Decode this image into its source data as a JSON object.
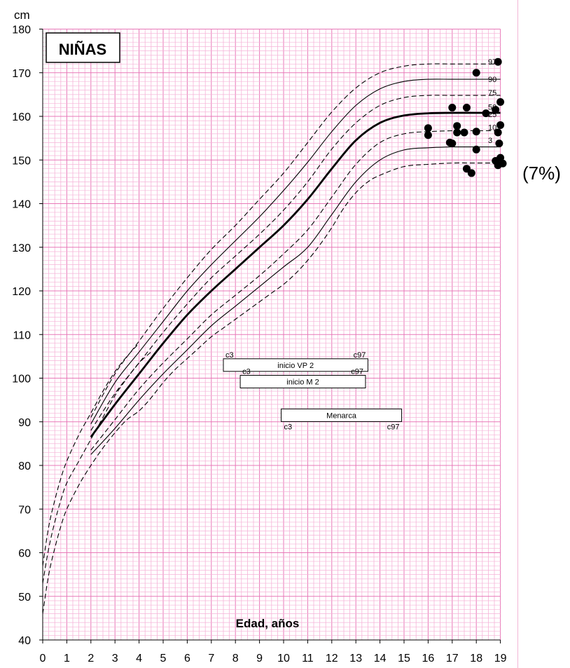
{
  "chart_data": {
    "type": "line",
    "title": "NIÑAS",
    "ylabel": "cm",
    "xlabel": "Edad, años",
    "xlim": [
      0,
      19
    ],
    "ylim": [
      40,
      180
    ],
    "xticks": [
      0,
      1,
      2,
      3,
      4,
      5,
      6,
      7,
      8,
      9,
      10,
      11,
      12,
      13,
      14,
      15,
      16,
      17,
      18,
      19
    ],
    "yticks": [
      40,
      50,
      60,
      70,
      80,
      90,
      100,
      110,
      120,
      130,
      140,
      150,
      160,
      170,
      180
    ],
    "grid": true,
    "side_note": "(7%)",
    "series": [
      {
        "name": "3",
        "style": "solid",
        "points": [
          [
            2,
            82.5
          ],
          [
            3,
            88.5
          ],
          [
            4,
            95
          ],
          [
            5,
            101
          ],
          [
            6,
            106.5
          ],
          [
            7,
            112
          ],
          [
            8,
            116.5
          ],
          [
            9,
            121
          ],
          [
            10,
            125.5
          ],
          [
            11,
            130
          ],
          [
            12,
            137.5
          ],
          [
            13,
            145
          ],
          [
            14,
            150
          ],
          [
            15,
            152.3
          ],
          [
            16,
            152.8
          ],
          [
            17,
            153
          ],
          [
            18,
            153
          ],
          [
            19,
            153
          ]
        ]
      },
      {
        "name": "10",
        "style": "dashed",
        "points": [
          [
            2,
            83.5
          ],
          [
            3,
            90.5
          ],
          [
            4,
            97.5
          ],
          [
            5,
            103.5
          ],
          [
            6,
            109
          ],
          [
            7,
            114.5
          ],
          [
            8,
            119
          ],
          [
            9,
            123.5
          ],
          [
            10,
            128.5
          ],
          [
            11,
            134
          ],
          [
            12,
            141.5
          ],
          [
            13,
            149
          ],
          [
            14,
            154
          ],
          [
            15,
            156
          ],
          [
            16,
            156.5
          ],
          [
            17,
            156.7
          ],
          [
            18,
            156.7
          ],
          [
            19,
            156.7
          ]
        ]
      },
      {
        "name": "50",
        "style": "bold",
        "points": [
          [
            2,
            86.5
          ],
          [
            3,
            94
          ],
          [
            4,
            101
          ],
          [
            5,
            108
          ],
          [
            6,
            114.5
          ],
          [
            7,
            120
          ],
          [
            8,
            125
          ],
          [
            9,
            130
          ],
          [
            10,
            135
          ],
          [
            11,
            141
          ],
          [
            12,
            148
          ],
          [
            13,
            154.5
          ],
          [
            14,
            158.5
          ],
          [
            15,
            160.2
          ],
          [
            16,
            160.7
          ],
          [
            17,
            160.8
          ],
          [
            18,
            160.8
          ],
          [
            19,
            160.8
          ]
        ]
      },
      {
        "name": "75",
        "style": "dashed",
        "points": [
          [
            2,
            88
          ],
          [
            3,
            96.5
          ],
          [
            4,
            103.5
          ],
          [
            5,
            110.5
          ],
          [
            6,
            117
          ],
          [
            7,
            123
          ],
          [
            8,
            128
          ],
          [
            9,
            133
          ],
          [
            10,
            138.5
          ],
          [
            11,
            145
          ],
          [
            12,
            152.5
          ],
          [
            13,
            158.5
          ],
          [
            14,
            162.5
          ],
          [
            15,
            164.3
          ],
          [
            16,
            164.8
          ],
          [
            17,
            164.8
          ],
          [
            18,
            164.8
          ],
          [
            19,
            164.8
          ]
        ]
      },
      {
        "name": "90",
        "style": "solid",
        "points": [
          [
            2,
            89.5
          ],
          [
            3,
            99
          ],
          [
            4,
            106
          ],
          [
            5,
            113
          ],
          [
            6,
            120
          ],
          [
            7,
            126
          ],
          [
            8,
            131.5
          ],
          [
            9,
            137
          ],
          [
            10,
            143
          ],
          [
            11,
            149.5
          ],
          [
            12,
            156.5
          ],
          [
            13,
            162.5
          ],
          [
            14,
            166.3
          ],
          [
            15,
            168
          ],
          [
            16,
            168.5
          ],
          [
            17,
            168.5
          ],
          [
            18,
            168.5
          ],
          [
            19,
            168.5
          ]
        ]
      },
      {
        "name": "97",
        "style": "dashed",
        "points": [
          [
            2,
            91
          ],
          [
            3,
            101
          ],
          [
            4,
            108.5
          ],
          [
            5,
            116
          ],
          [
            6,
            123
          ],
          [
            7,
            129.5
          ],
          [
            8,
            135
          ],
          [
            9,
            141
          ],
          [
            10,
            147
          ],
          [
            11,
            154
          ],
          [
            12,
            161
          ],
          [
            13,
            166.5
          ],
          [
            14,
            170
          ],
          [
            15,
            171.5
          ],
          [
            16,
            172
          ],
          [
            17,
            172
          ],
          [
            18,
            172
          ],
          [
            19,
            172
          ]
        ]
      },
      {
        "name": "",
        "style": "dashed",
        "points": [
          [
            0,
            46
          ],
          [
            0.25,
            55
          ],
          [
            0.5,
            61
          ],
          [
            0.75,
            66
          ],
          [
            1,
            70
          ],
          [
            1.5,
            75.5
          ],
          [
            2,
            80
          ],
          [
            2.5,
            84
          ],
          [
            3,
            87.5
          ],
          [
            3.5,
            90.5
          ],
          [
            4,
            92.5
          ],
          [
            4.5,
            95.5
          ],
          [
            5,
            99
          ],
          [
            5.5,
            102
          ],
          [
            6,
            104.5
          ],
          [
            6.5,
            107
          ],
          [
            7,
            109.5
          ],
          [
            7.5,
            111.5
          ],
          [
            8,
            113.5
          ],
          [
            8.5,
            115.5
          ],
          [
            9,
            117.5
          ],
          [
            9.5,
            119.5
          ],
          [
            10,
            121.5
          ],
          [
            10.5,
            124
          ],
          [
            11,
            127
          ],
          [
            11.5,
            130.5
          ],
          [
            12,
            134.5
          ],
          [
            12.5,
            139
          ],
          [
            13,
            142.5
          ],
          [
            13.5,
            145
          ],
          [
            14,
            146.5
          ],
          [
            15,
            148.5
          ],
          [
            16,
            149
          ],
          [
            17,
            149.3
          ],
          [
            18,
            149.3
          ],
          [
            19,
            149.3
          ]
        ]
      },
      {
        "name": "",
        "style": "dashed",
        "points": [
          [
            0,
            53
          ],
          [
            0.25,
            61
          ],
          [
            0.5,
            67
          ],
          [
            0.75,
            72
          ],
          [
            1,
            76
          ],
          [
            1.5,
            81
          ],
          [
            2,
            86
          ],
          [
            2.5,
            91
          ],
          [
            3,
            96
          ],
          [
            3.5,
            100
          ],
          [
            4,
            103.5
          ],
          [
            4.5,
            106
          ]
        ]
      },
      {
        "name": "",
        "style": "dashed",
        "points": [
          [
            0,
            57
          ],
          [
            0.25,
            66
          ],
          [
            0.5,
            72
          ],
          [
            0.75,
            77
          ],
          [
            1,
            81
          ],
          [
            1.5,
            87
          ],
          [
            2,
            92
          ],
          [
            2.5,
            97
          ],
          [
            3,
            101.5
          ],
          [
            3.5,
            105
          ],
          [
            4,
            108
          ]
        ]
      }
    ],
    "percentile_labels": [
      {
        "text": "97",
        "y": 172.5
      },
      {
        "text": "90",
        "y": 168.5
      },
      {
        "text": "75",
        "y": 165.5
      },
      {
        "text": "50",
        "y": 162.2
      },
      {
        "text": "25",
        "y": 160.5
      },
      {
        "text": "10",
        "y": 157.5
      },
      {
        "text": "3",
        "y": 154.5
      }
    ],
    "points": [
      [
        18.9,
        172.5
      ],
      [
        18,
        170
      ],
      [
        17,
        162
      ],
      [
        17.6,
        162
      ],
      [
        19,
        163.3
      ],
      [
        18.8,
        161.5
      ],
      [
        18.4,
        160.7
      ],
      [
        16,
        157.3
      ],
      [
        16,
        155.7
      ],
      [
        17.2,
        157.8
      ],
      [
        17.2,
        156.3
      ],
      [
        17.5,
        156.3
      ],
      [
        18,
        156.5
      ],
      [
        18.9,
        156.3
      ],
      [
        19,
        158
      ],
      [
        16.9,
        154
      ],
      [
        17,
        153.8
      ],
      [
        18.95,
        153.8
      ],
      [
        18,
        152.4
      ],
      [
        19,
        150.5
      ],
      [
        18.8,
        149.8
      ],
      [
        19.1,
        149.2
      ],
      [
        18.9,
        148.8
      ],
      [
        17.6,
        148
      ],
      [
        17.8,
        147
      ]
    ],
    "ranges": [
      {
        "label": "inicio VP 2",
        "start": 7.5,
        "end": 13.5,
        "y": 103,
        "start_label": "c3",
        "end_label": "c97"
      },
      {
        "label": "inicio M 2",
        "start": 8.2,
        "end": 13.4,
        "y": 99.2,
        "start_label": "c3",
        "end_label": "c97"
      },
      {
        "label": "Menarca",
        "start": 9.9,
        "end": 14.9,
        "y": 91.5,
        "start_label": "c3",
        "end_label": "c97"
      }
    ]
  }
}
